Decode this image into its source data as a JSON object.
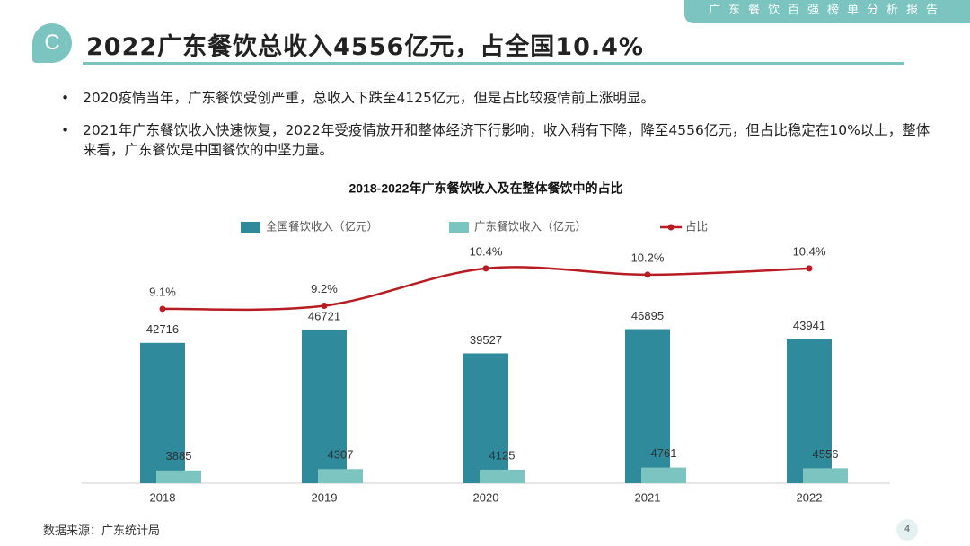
{
  "header": {
    "tab": "广东餐饮百强榜单分析报告",
    "logo": "C",
    "title": "2022广东餐饮总收入4556亿元，占全国10.4%"
  },
  "bullets": [
    "2020疫情当年，广东餐饮受创严重，总收入下跌至4125亿元，但是占比较疫情前上涨明显。",
    "2021年广东餐饮收入快速恢复，2022年受疫情放开和整体经济下行影响，收入稍有下降，降至4556亿元，但占比稳定在10%以上，整体来看，广东餐饮是中国餐饮的中坚力量。"
  ],
  "chart_data": {
    "type": "bar",
    "title": "2018-2022年广东餐饮收入及在整体餐饮中的占比",
    "categories": [
      "2018",
      "2019",
      "2020",
      "2021",
      "2022"
    ],
    "series": [
      {
        "name": "全国餐饮收入（亿元）",
        "color": "#2f8a9c",
        "values": [
          42716,
          46721,
          39527,
          46895,
          43941
        ]
      },
      {
        "name": "广东餐饮收入（亿元）",
        "color": "#7cc4c0",
        "values": [
          3885,
          4307,
          4125,
          4761,
          4556
        ]
      },
      {
        "name": "占比",
        "color": "#b81c22",
        "type": "line",
        "axis": "y2",
        "values": [
          9.1,
          9.2,
          10.4,
          10.2,
          10.4
        ],
        "value_labels": [
          "9.1%",
          "9.2%",
          "10.4%",
          "10.2%",
          "10.4%"
        ]
      }
    ],
    "ylim": [
      0,
      81500
    ],
    "y2lim": [
      3.5,
      12.1
    ],
    "legend": "top"
  },
  "footer": {
    "source": "数据来源：广东统计局",
    "page_number": "4"
  }
}
